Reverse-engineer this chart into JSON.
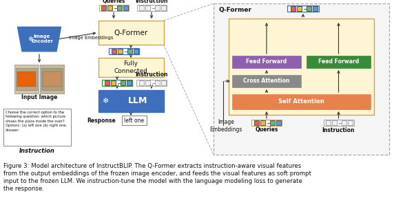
{
  "fig_width": 5.72,
  "fig_height": 3.17,
  "dpi": 100,
  "bg_color": "#ffffff",
  "caption_line1": "Figure 3: Model architecture of InstructBLIP. The Q-Former extracts instruction-aware visual features",
  "caption_line2": "from the output embeddings of the frozen image encoder, and feeds the visual features as soft prompt",
  "caption_line3": "input to the frozen LLM. We instruction-tune the model with the language modeling loss to generate",
  "caption_line4": "the response.",
  "caption_fontsize": 6.2,
  "token_colors_colored": [
    "#e06060",
    "#e8b84b",
    "#6ab187",
    "#5b9bd5"
  ],
  "token_colors_white": [
    "#f0f0f0",
    "#f0f0f0",
    "#f0f0f0",
    "#f0f0f0"
  ],
  "qformer_bg": "#fef5d4",
  "qformer_border": "#c8a84a",
  "llm_color": "#3d6fbd",
  "fc_bg": "#fef5d4",
  "fc_border": "#c8a84a",
  "encoder_color": "#3d6fbd",
  "self_attn_color": "#e8824a",
  "cross_attn_color": "#8a8a8a",
  "ff_left_color": "#9060b0",
  "ff_right_color": "#3a8a3a",
  "inner_bg": "#fef5d4",
  "inner_border": "#c8a84a",
  "outer_dash_bg": "#f5f5f5",
  "outer_dash_border": "#aaaaaa",
  "arrow_color": "#333333",
  "text_color": "#111111",
  "token_border": "#555555",
  "white_token_border": "#aaaaaa",
  "blue_token_border": "#3d6fbd",
  "green_token_border": "#3a8a3a"
}
